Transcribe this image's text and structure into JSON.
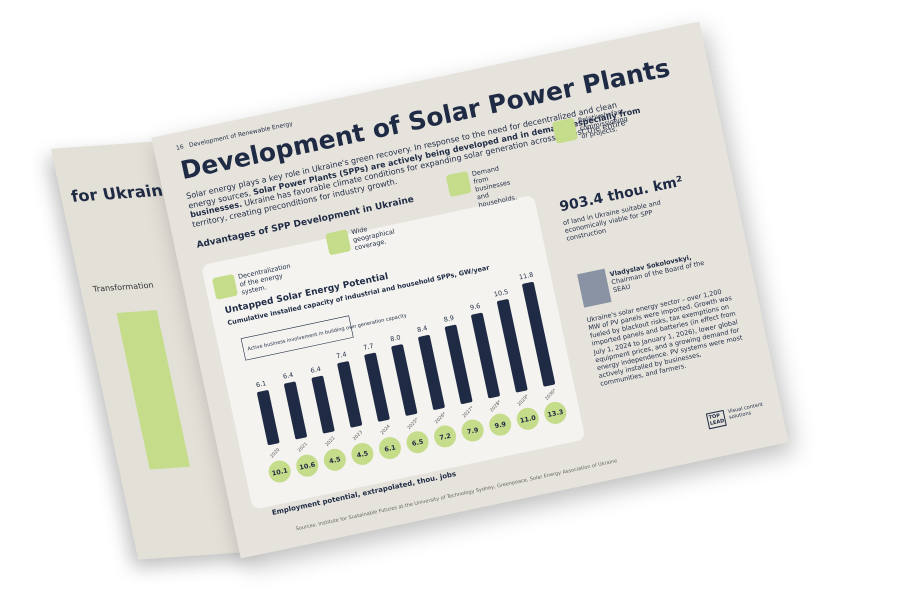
{
  "header": {
    "page_number": "16",
    "section": "Development of Renewable Energy"
  },
  "left_page": {
    "title": "for Ukraine",
    "section": "Transformation"
  },
  "title": "Development of Solar Power Plants",
  "intro": [
    "Solar energy plays a key role in Ukraine's green recovery. In response to the need for decentralized and clean energy sources, ",
    "Solar Power Plants (SPPs) are actively being developed and in demand, especially from businesses.",
    " Ukraine has favorable climate conditions for expanding solar generation across almost the entire territory, creating preconditions for industry growth."
  ],
  "advantages": {
    "heading": "Advantages of SPP Development in Ukraine",
    "items": [
      "Decentralization of the energy system.",
      "Wide geographical coverage.",
      "Demand from businesses and households.",
      "Relatively fast commissioning of projects."
    ]
  },
  "stat": {
    "value": "903.4 thou. km²",
    "caption": "of land in Ukraine suitable and economically viable for SPP construction"
  },
  "chart": {
    "type": "bar",
    "title": "Untapped Solar Energy Potential",
    "subtitle": "Cumulative installed capacity of industrial and household SPPs, GW/year",
    "annotation": "Active business involvement in building own generation capacity",
    "categories": [
      "2020",
      "2021",
      "2022",
      "2023",
      "2024",
      "2025*",
      "2026*",
      "2027*",
      "2028*",
      "2029*",
      "2030*"
    ],
    "capacity": {
      "color": "#1f2b45",
      "values": [
        6.1,
        6.4,
        6.4,
        7.4,
        7.7,
        8.0,
        8.4,
        8.9,
        9.6,
        10.5,
        11.8
      ],
      "value_labels": [
        "6.1",
        "6.4",
        "6.4",
        "7.4",
        "7.7",
        "8.0",
        "8.4",
        "8.9",
        "9.6",
        "10.5",
        "11.8"
      ]
    },
    "jobs": {
      "name": "Employment potential, extrapolated, thou. jobs",
      "color": "#c5dc8a",
      "values": [
        10.1,
        10.6,
        4.5,
        4.5,
        6.1,
        6.5,
        7.2,
        7.9,
        9.9,
        11.0,
        13.3
      ],
      "value_labels": [
        "10.1",
        "10.6",
        "4.5",
        "4.5",
        "6.1",
        "6.5",
        "7.2",
        "7.9",
        "9.9",
        "11.0",
        "13.3"
      ]
    }
  },
  "quote": {
    "name": "Vladyslav Sokolovskyi,",
    "role": "Chairman of the Board of the SEAU",
    "text": "Ukraine's solar energy sector – over 1,200 MW of PV panels were imported. Growth was fueled by blackout risks, tax exemptions on imported panels and batteries (in effect from July 1, 2024 to January 1, 2026), lower global equipment prices, and a growing demand for energy independence. PV systems were most actively installed by businesses, communities, and farmers."
  },
  "sources": "Sources: Institute for Sustainable Futures at the University of Technology Sydney, Greenpeace, Solar Energy Association of Ukraine",
  "logo": {
    "mark": "TOP LEAD",
    "text": "Visual content solutions"
  }
}
